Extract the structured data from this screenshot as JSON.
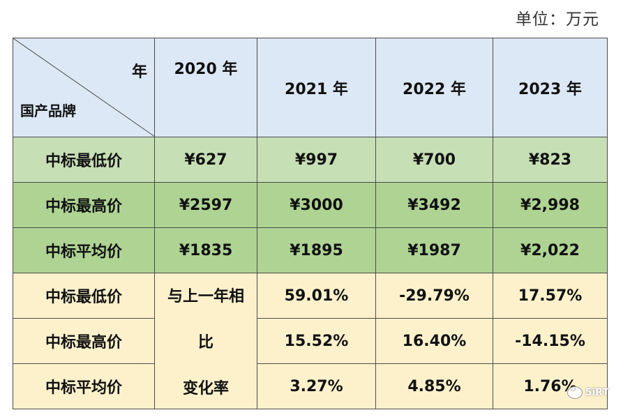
{
  "unit_label": "单位：万元",
  "corner": {
    "top": "年",
    "bottom": "国产品牌"
  },
  "years": [
    "2020 年",
    "2021 年",
    "2022 年",
    "2023 年"
  ],
  "price_rows": [
    {
      "label": "中标最低价",
      "values": [
        "¥627",
        "¥997",
        "¥700",
        "¥823"
      ]
    },
    {
      "label": "中标最高价",
      "values": [
        "¥2597",
        "¥3000",
        "¥3492",
        "¥2,998"
      ]
    },
    {
      "label": "中标平均价",
      "values": [
        "¥1835",
        "¥1895",
        "¥1987",
        "¥2,022"
      ]
    }
  ],
  "change_label_lines": [
    "与上一年相",
    "比",
    "变化率"
  ],
  "change_rows": [
    {
      "label": "中标最低价",
      "values": [
        "59.01%",
        "-29.79%",
        "17.57%"
      ]
    },
    {
      "label": "中标最高价",
      "values": [
        "15.52%",
        "16.40%",
        "-14.15%"
      ]
    },
    {
      "label": "中标平均价",
      "values": [
        "3.27%",
        "4.85%",
        "1.76%"
      ]
    }
  ],
  "watermark": "5iRT",
  "colors": {
    "header_bg": "#dce8f5",
    "row_light_green": "#c7dfb4",
    "row_green": "#aed393",
    "row_yellow": "#fdf1cc"
  }
}
